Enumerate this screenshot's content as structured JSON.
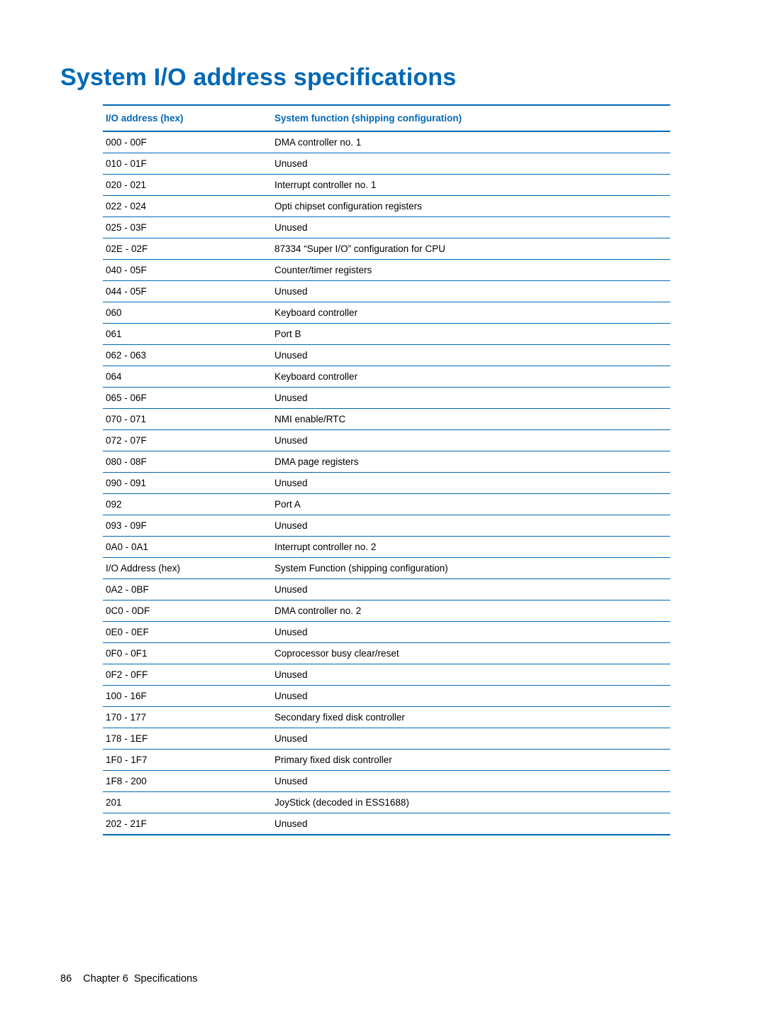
{
  "title": "System I/O address specifications",
  "table": {
    "header_addr": "I/O address (hex)",
    "header_func": "System function (shipping configuration)",
    "rows": [
      {
        "addr": "000 - 00F",
        "func": "DMA controller no. 1"
      },
      {
        "addr": "010 - 01F",
        "func": "Unused"
      },
      {
        "addr": "020 - 021",
        "func": "Interrupt controller no. 1"
      },
      {
        "addr": "022 - 024",
        "func": "Opti chipset configuration registers"
      },
      {
        "addr": "025 - 03F",
        "func": "Unused"
      },
      {
        "addr": "02E - 02F",
        "func": "87334 “Super I/O” configuration for CPU"
      },
      {
        "addr": "040 - 05F",
        "func": "Counter/timer registers"
      },
      {
        "addr": "044 - 05F",
        "func": "Unused"
      },
      {
        "addr": "060",
        "func": "Keyboard controller"
      },
      {
        "addr": "061",
        "func": "Port B"
      },
      {
        "addr": "062 - 063",
        "func": "Unused"
      },
      {
        "addr": "064",
        "func": "Keyboard controller"
      },
      {
        "addr": "065 - 06F",
        "func": "Unused"
      },
      {
        "addr": "070 - 071",
        "func": "NMI enable/RTC"
      },
      {
        "addr": "072 - 07F",
        "func": "Unused"
      },
      {
        "addr": "080 - 08F",
        "func": "DMA page registers"
      },
      {
        "addr": "090 - 091",
        "func": "Unused"
      },
      {
        "addr": "092",
        "func": "Port A"
      },
      {
        "addr": "093 - 09F",
        "func": "Unused"
      },
      {
        "addr": "0A0 - 0A1",
        "func": "Interrupt controller no. 2"
      },
      {
        "addr": "I/O Address (hex)",
        "func": "System Function (shipping configuration)"
      },
      {
        "addr": "0A2 - 0BF",
        "func": "Unused"
      },
      {
        "addr": "0C0 - 0DF",
        "func": "DMA controller no. 2"
      },
      {
        "addr": "0E0 - 0EF",
        "func": "Unused"
      },
      {
        "addr": "0F0 - 0F1",
        "func": "Coprocessor busy clear/reset"
      },
      {
        "addr": "0F2 - 0FF",
        "func": "Unused"
      },
      {
        "addr": "100 - 16F",
        "func": "Unused"
      },
      {
        "addr": "170 - 177",
        "func": "Secondary fixed disk controller"
      },
      {
        "addr": "178 - 1EF",
        "func": "Unused"
      },
      {
        "addr": "1F0 - 1F7",
        "func": "Primary fixed disk controller"
      },
      {
        "addr": "1F8 - 200",
        "func": "Unused"
      },
      {
        "addr": "201",
        "func": "JoyStick (decoded in ESS1688)"
      },
      {
        "addr": "202 - 21F",
        "func": "Unused"
      }
    ]
  },
  "footer": {
    "page_number": "86",
    "chapter_label": "Chapter 6",
    "chapter_title": "Specifications"
  },
  "colors": {
    "accent": "#0068b5",
    "text": "#000000",
    "background": "#ffffff"
  },
  "typography": {
    "title_fontsize": 34,
    "header_fontsize": 13.5,
    "cell_fontsize": 13.5,
    "footer_fontsize": 14.5
  }
}
